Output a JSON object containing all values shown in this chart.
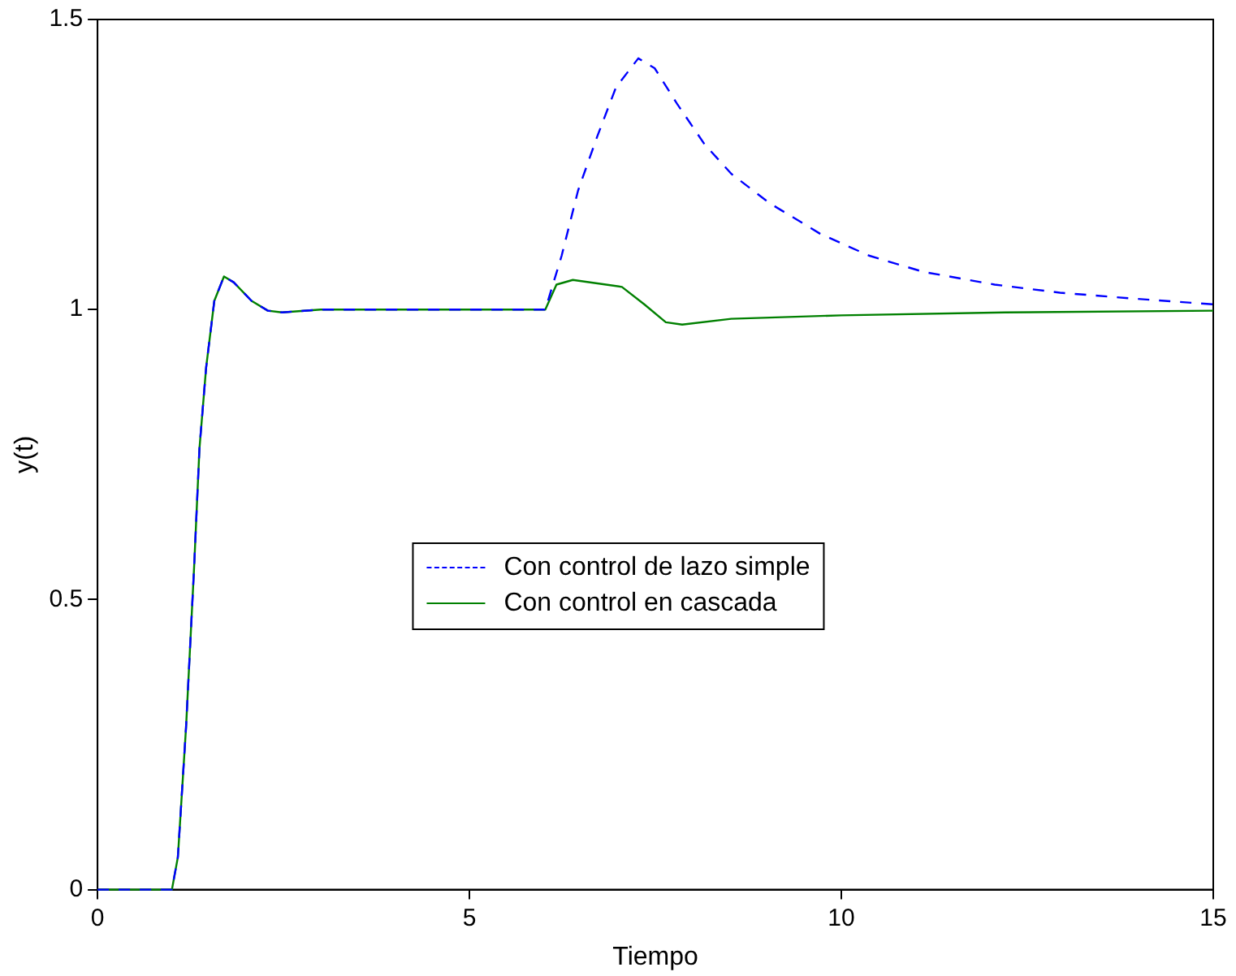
{
  "chart_data": {
    "type": "line",
    "xlabel": "Tiempo",
    "ylabel": "y(t)",
    "xlim": [
      0,
      15
    ],
    "ylim": [
      0,
      1.5
    ],
    "xticks": [
      0,
      5,
      10,
      15
    ],
    "yticks": [
      0,
      0.5,
      1,
      1.5
    ],
    "grid": false,
    "legend": "center",
    "series": [
      {
        "name": "Con control de lazo simple",
        "color": "#0000ff",
        "line_style": "dashed",
        "x": [
          0,
          1.0,
          1.08,
          1.19,
          1.3,
          1.37,
          1.46,
          1.57,
          1.7,
          1.83,
          2.07,
          2.29,
          2.48,
          3,
          6,
          6.02,
          6.24,
          6.46,
          6.72,
          6.97,
          7.27,
          7.49,
          7.79,
          8.16,
          8.52,
          9.04,
          9.71,
          10.37,
          11.1,
          12.06,
          12.94,
          13.91,
          15
        ],
        "values": [
          0,
          0,
          0.056,
          0.28,
          0.56,
          0.76,
          0.9,
          1.015,
          1.057,
          1.047,
          1.015,
          0.998,
          0.995,
          1,
          1,
          1,
          1.093,
          1.205,
          1.299,
          1.383,
          1.433,
          1.416,
          1.355,
          1.285,
          1.234,
          1.183,
          1.131,
          1.093,
          1.065,
          1.043,
          1.029,
          1.019,
          1.009
        ]
      },
      {
        "name": "Con control en cascada",
        "color": "#008000",
        "line_style": "solid",
        "x": [
          0,
          1.0,
          1.08,
          1.19,
          1.3,
          1.37,
          1.46,
          1.57,
          1.7,
          1.83,
          2.07,
          2.29,
          2.48,
          3,
          6,
          6.02,
          6.17,
          6.39,
          7.05,
          7.35,
          7.64,
          7.86,
          8.52,
          10,
          12.2,
          15
        ],
        "values": [
          0,
          0,
          0.056,
          0.28,
          0.56,
          0.76,
          0.9,
          1.015,
          1.057,
          1.047,
          1.015,
          0.998,
          0.995,
          1,
          1,
          1,
          1.043,
          1.051,
          1.039,
          1.009,
          0.978,
          0.974,
          0.984,
          0.99,
          0.995,
          0.998
        ]
      }
    ]
  }
}
